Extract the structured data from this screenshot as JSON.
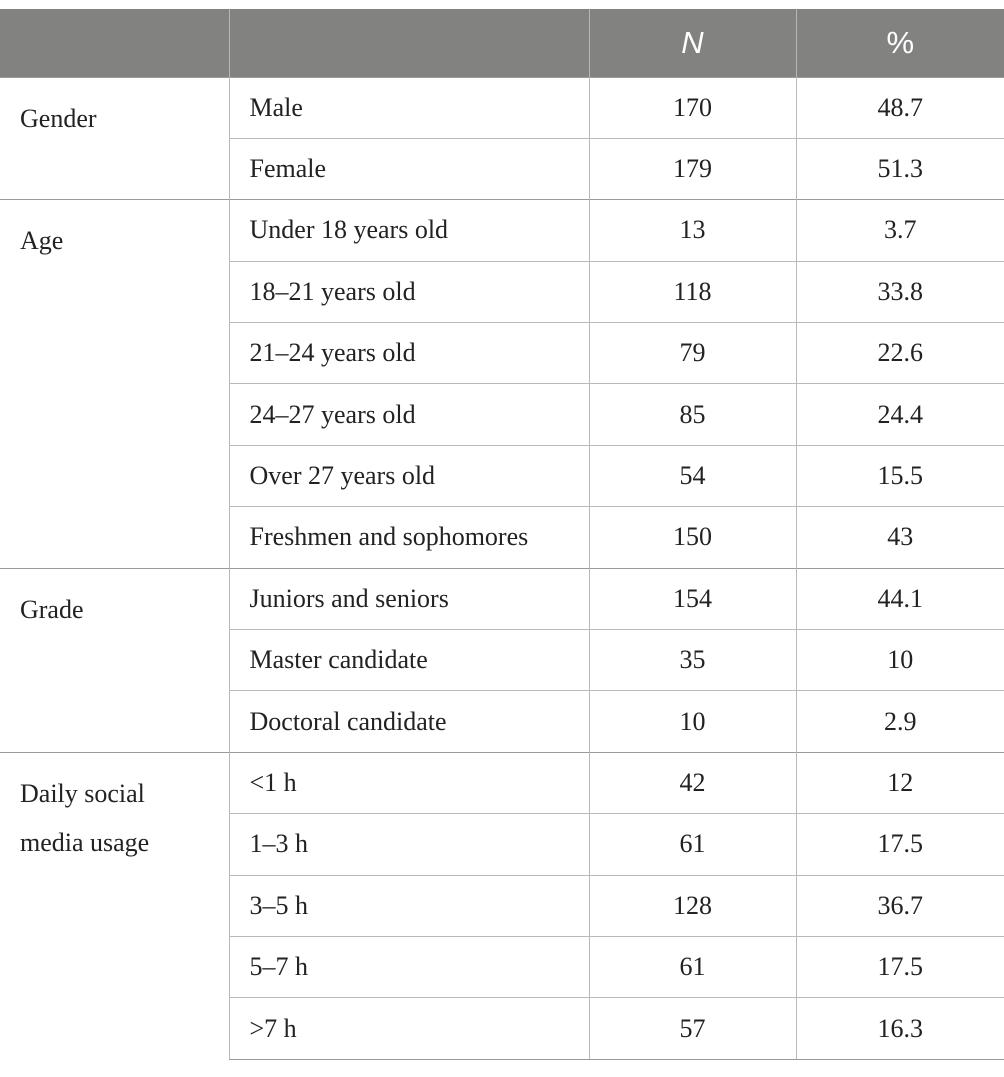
{
  "table": {
    "headers": [
      "",
      "",
      "N",
      "%"
    ],
    "groups": [
      {
        "label": "Gender",
        "rows": [
          {
            "category": "Male",
            "n": "170",
            "pct": "48.7"
          },
          {
            "category": "Female",
            "n": "179",
            "pct": "51.3"
          }
        ]
      },
      {
        "label": "Age",
        "rows": [
          {
            "category": "Under 18 years old",
            "n": "13",
            "pct": "3.7"
          },
          {
            "category": "18–21 years old",
            "n": "118",
            "pct": "33.8"
          },
          {
            "category": "21–24 years old",
            "n": "79",
            "pct": "22.6"
          },
          {
            "category": "24–27 years old",
            "n": "85",
            "pct": "24.4"
          },
          {
            "category": "Over 27 years old",
            "n": "54",
            "pct": "15.5"
          },
          {
            "category": "Freshmen and sophomores",
            "n": "150",
            "pct": "43"
          }
        ]
      },
      {
        "label": "Grade",
        "rows": [
          {
            "category": "Juniors and seniors",
            "n": "154",
            "pct": "44.1"
          },
          {
            "category": "Master candidate",
            "n": "35",
            "pct": "10"
          },
          {
            "category": "Doctoral candidate",
            "n": "10",
            "pct": "2.9"
          }
        ]
      },
      {
        "label": "Daily social media usage",
        "rows": [
          {
            "category": "<1 h",
            "n": "42",
            "pct": "12"
          },
          {
            "category": "1–3 h",
            "n": "61",
            "pct": "17.5"
          },
          {
            "category": "3–5 h",
            "n": "128",
            "pct": "36.7"
          },
          {
            "category": "5–7 h",
            "n": "61",
            "pct": "17.5"
          },
          {
            "category": ">7 h",
            "n": "57",
            "pct": "16.3"
          }
        ]
      }
    ]
  }
}
